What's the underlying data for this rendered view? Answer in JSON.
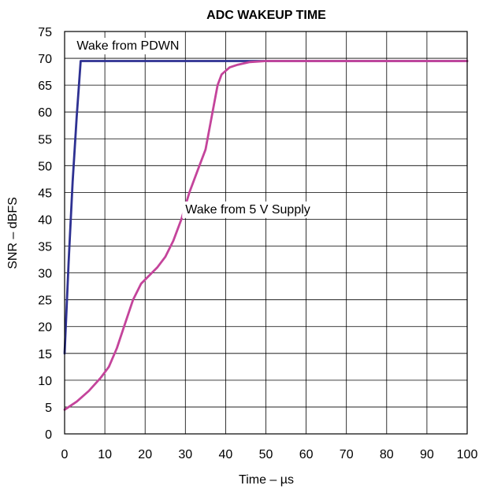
{
  "chart_data": {
    "type": "line",
    "title": "ADC WAKEUP TIME",
    "xlabel": "Time – µs",
    "ylabel": "SNR – dBFS",
    "xlim": [
      0,
      100
    ],
    "ylim": [
      0,
      75
    ],
    "xticks": [
      0,
      10,
      20,
      30,
      40,
      50,
      60,
      70,
      80,
      90,
      100
    ],
    "yticks": [
      0,
      5,
      10,
      15,
      20,
      25,
      30,
      35,
      40,
      45,
      50,
      55,
      60,
      65,
      70,
      75
    ],
    "grid": true,
    "series": [
      {
        "name": "Wake from PDWN",
        "color": "#2e3192",
        "points": [
          [
            0,
            15
          ],
          [
            1,
            32
          ],
          [
            2,
            47
          ],
          [
            3,
            59
          ],
          [
            4,
            69.5
          ],
          [
            100,
            69.5
          ]
        ]
      },
      {
        "name": "Wake from 5 V Supply",
        "color": "#c4449b",
        "points": [
          [
            0,
            4.5
          ],
          [
            3,
            6
          ],
          [
            6,
            8
          ],
          [
            9,
            10.5
          ],
          [
            11,
            12.5
          ],
          [
            13,
            16
          ],
          [
            15,
            20.5
          ],
          [
            17,
            25
          ],
          [
            19,
            28
          ],
          [
            21,
            29.5
          ],
          [
            23,
            31
          ],
          [
            25,
            33
          ],
          [
            27,
            36
          ],
          [
            29,
            40
          ],
          [
            31,
            45
          ],
          [
            33,
            49
          ],
          [
            35,
            53
          ],
          [
            36,
            57
          ],
          [
            37,
            61
          ],
          [
            38,
            65
          ],
          [
            39,
            67
          ],
          [
            41,
            68.3
          ],
          [
            43,
            68.8
          ],
          [
            46,
            69.3
          ],
          [
            50,
            69.5
          ],
          [
            60,
            69.5
          ],
          [
            100,
            69.5
          ]
        ]
      }
    ],
    "annotations": [
      {
        "series": 0,
        "text": "Wake from PDWN",
        "x": 3,
        "y": 72.5,
        "align": "start"
      },
      {
        "series": 1,
        "text": "Wake from 5 V Supply",
        "x": 45.5,
        "y": 42,
        "align": "middle"
      }
    ]
  }
}
